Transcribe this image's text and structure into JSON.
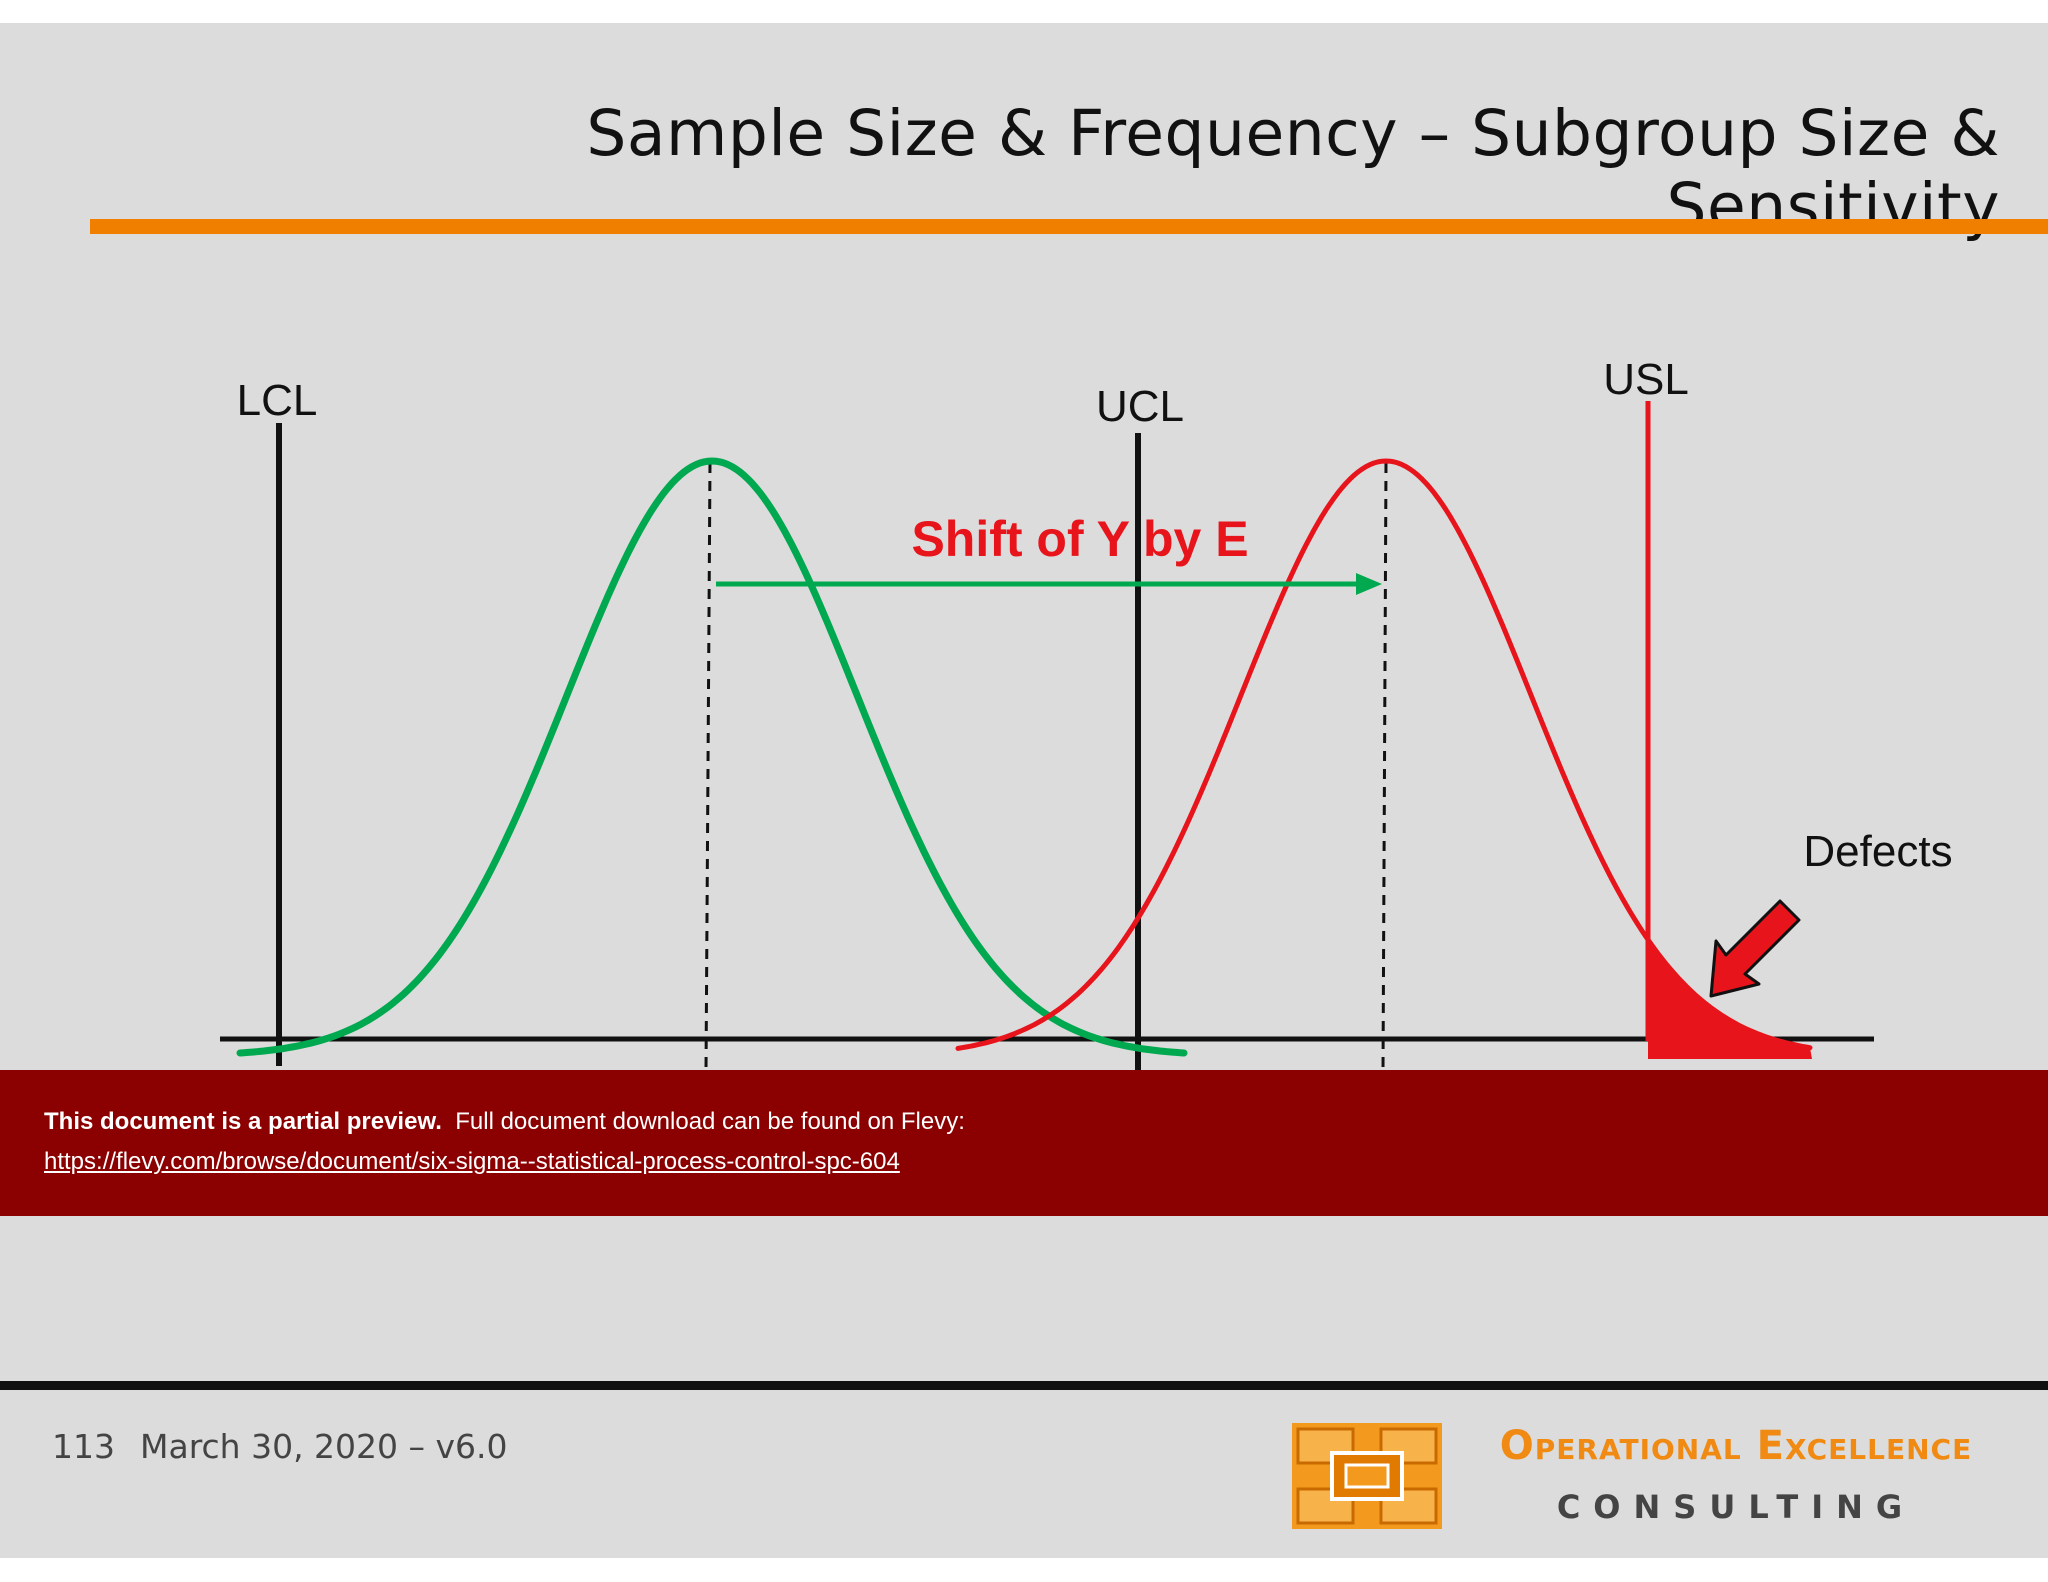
{
  "slide": {
    "title": "Sample Size & Frequency – Subgroup Size & Sensitivity",
    "accent_color": "#f07f00"
  },
  "diagram": {
    "labels": {
      "lcl": "LCL",
      "ucl": "UCL",
      "usl": "USL",
      "shift": "Shift of Y by E",
      "defects": "Defects"
    },
    "colors": {
      "original_curve": "#00a850",
      "shifted_curve": "#e8141b",
      "limit_lines": "#111111"
    }
  },
  "banner": {
    "strong_text": "This document is a partial preview.",
    "text": "Full document download can be found on Flevy:",
    "link": "https://flevy.com/browse/document/six-sigma--statistical-process-control-spc-604"
  },
  "footer": {
    "page_number": "113",
    "version": "March 30, 2020 – v6.0",
    "logo_name": "Operational Excellence",
    "logo_sub": "CONSULTING"
  }
}
